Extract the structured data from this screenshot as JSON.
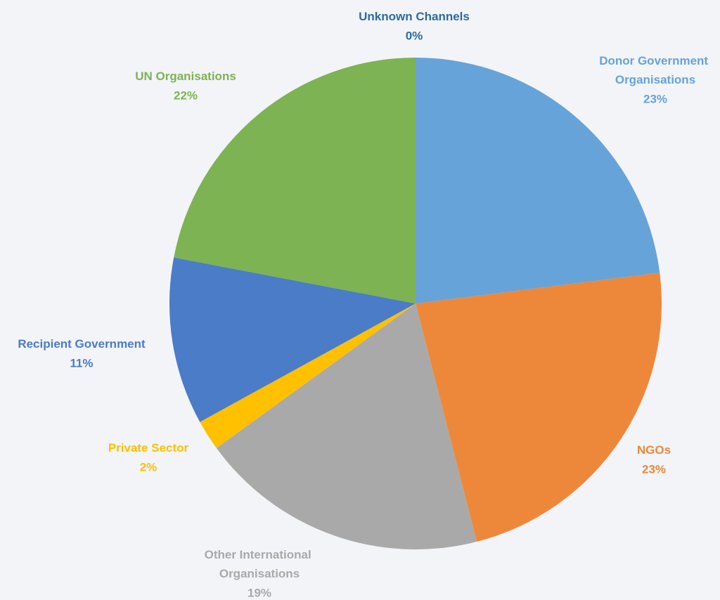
{
  "chart_data": {
    "type": "pie",
    "categories": [
      "Unknown Channels",
      "Donor Government Organisations",
      "NGOs",
      "Other International Organisations",
      "Private Sector",
      "Recipient Government",
      "UN Organisations"
    ],
    "values": [
      0,
      23,
      23,
      19,
      2,
      11,
      22
    ],
    "value_labels": [
      "0%",
      "23%",
      "23%",
      "19%",
      "2%",
      "11%",
      "22%"
    ],
    "colors": [
      "#2e6aa3",
      "#66a3d9",
      "#ed883b",
      "#a9a9a9",
      "#ffc000",
      "#4a7cc8",
      "#7db352"
    ]
  }
}
